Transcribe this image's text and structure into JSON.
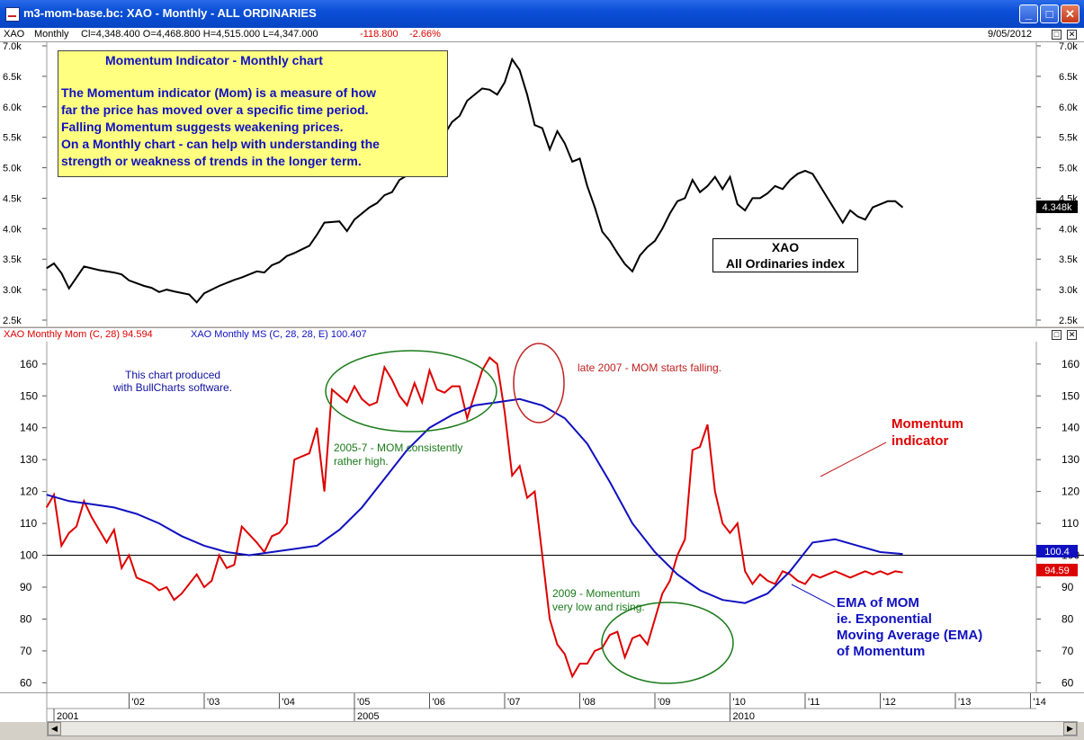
{
  "window": {
    "title": "m3-mom-base.bc: XAO - Monthly - ALL ORDINARIES",
    "minimize_icon": "minimize-icon",
    "maximize_icon": "maximize-icon",
    "close_icon": "close-icon"
  },
  "price_pane": {
    "header": {
      "symbol": "XAO",
      "period": "Monthly",
      "ohlc": "Cl=4,348.400  O=4,468.800  H=4,515.000  L=4,347.000",
      "change": "-118.800",
      "change_pct": "-2.66%",
      "date": "9/05/2012"
    },
    "y_ticks": [
      "7.0k",
      "6.5k",
      "6.0k",
      "5.5k",
      "5.0k",
      "4.5k",
      "4.0k",
      "3.5k",
      "3.0k",
      "2.5k"
    ],
    "last_value_label": "4.348k",
    "note": {
      "title": "Momentum Indicator - Monthly chart",
      "lines": [
        "The Momentum indicator (Mom) is a measure of how",
        "far the price has moved over a specific time period.",
        "Falling Momentum suggests weakening prices.",
        "On a Monthly chart - can help with understanding the",
        "strength or weakness of trends in the longer term."
      ]
    },
    "label_box": {
      "line1": "XAO",
      "line2": "All Ordinaries index"
    }
  },
  "indicator_pane": {
    "header": {
      "mom_label": "XAO  Monthly  Mom (C, 28)  94.594",
      "ma_label": "XAO  Monthly  MS (C, 28, 28, E)  100.407"
    },
    "y_ticks": [
      "160",
      "150",
      "140",
      "130",
      "120",
      "110",
      "100",
      "90",
      "80",
      "70",
      "60"
    ],
    "ma_last_label": "100.4",
    "mom_last_label": "94.59",
    "annotations": {
      "software": [
        "This chart produced",
        "with BullCharts software."
      ],
      "high": [
        "2005-7 - MOM consistently",
        "rather high."
      ],
      "falling": "late 2007 - MOM starts falling.",
      "low": [
        "2009 - Momentum",
        "very low and rising."
      ],
      "mom_label": [
        "Momentum",
        "indicator"
      ],
      "ema_label": [
        "EMA of MOM",
        "ie. Exponential",
        "Moving Average (EMA)",
        "of Momentum"
      ]
    }
  },
  "x_axis": {
    "year_ticks": [
      "'02",
      "'03",
      "'04",
      "'05",
      "'06",
      "'07",
      "'08",
      "'09",
      "'10",
      "'11",
      "'12",
      "'13",
      "'14"
    ],
    "lower_labels": [
      "2001",
      "2005",
      "2010"
    ]
  },
  "scrollbar": {
    "left_icon": "arrow-left-icon",
    "right_icon": "arrow-right-icon"
  },
  "colors": {
    "price": "#000000",
    "momentum": "#dd0000",
    "ema": "#1010c0",
    "note_bg": "#ffff80",
    "note_text": "#1010c0",
    "annotation_green": "#1a7a1a",
    "annotation_red": "#c02020"
  },
  "chart_data": [
    {
      "type": "line",
      "title": "",
      "series": [
        {
          "name": "XAO",
          "x": [
            2000.9,
            2001.0,
            2001.1,
            2001.2,
            2001.4,
            2001.5,
            2001.6,
            2001.8,
            2001.9,
            2002.0,
            2002.2,
            2002.3,
            2002.4,
            2002.5,
            2002.6,
            2002.8,
            2002.9,
            2003.0,
            2003.1,
            2003.2,
            2003.4,
            2003.5,
            2003.7,
            2003.8,
            2003.9,
            2004.0,
            2004.1,
            2004.2,
            2004.4,
            2004.5,
            2004.6,
            2004.8,
            2004.9,
            2005.0,
            2005.2,
            2005.3,
            2005.4,
            2005.5,
            2005.6,
            2005.8,
            2005.9,
            2006.0,
            2006.2,
            2006.3,
            2006.4,
            2006.5,
            2006.7,
            2006.8,
            2006.9,
            2007.0,
            2007.1,
            2007.2,
            2007.3,
            2007.4,
            2007.5,
            2007.6,
            2007.7,
            2007.8,
            2007.9,
            2008.0,
            2008.1,
            2008.2,
            2008.3,
            2008.4,
            2008.5,
            2008.6,
            2008.7,
            2008.8,
            2008.9,
            2009.0,
            2009.1,
            2009.2,
            2009.3,
            2009.4,
            2009.5,
            2009.6,
            2009.7,
            2009.8,
            2009.9,
            2010.0,
            2010.1,
            2010.2,
            2010.3,
            2010.4,
            2010.5,
            2010.6,
            2010.7,
            2010.8,
            2010.9,
            2011.0,
            2011.1,
            2011.2,
            2011.3,
            2011.4,
            2011.5,
            2011.6,
            2011.7,
            2011.8,
            2011.9,
            2012.0,
            2012.1,
            2012.2,
            2012.3
          ],
          "values": [
            3350,
            3430,
            3270,
            3020,
            3380,
            3350,
            3320,
            3280,
            3250,
            3150,
            3060,
            3030,
            2960,
            3000,
            2970,
            2920,
            2790,
            2940,
            3000,
            3060,
            3160,
            3200,
            3300,
            3280,
            3400,
            3450,
            3550,
            3600,
            3720,
            3900,
            4100,
            4120,
            3960,
            4150,
            4350,
            4420,
            4550,
            4600,
            4800,
            4950,
            5050,
            5300,
            5550,
            5750,
            5850,
            6100,
            6300,
            6280,
            6200,
            6400,
            6780,
            6600,
            6200,
            5700,
            5650,
            5300,
            5600,
            5400,
            5100,
            5150,
            4700,
            4350,
            3950,
            3800,
            3600,
            3420,
            3300,
            3560,
            3700,
            3800,
            4000,
            4250,
            4450,
            4500,
            4800,
            4600,
            4700,
            4850,
            4650,
            4850,
            4400,
            4300,
            4500,
            4500,
            4580,
            4700,
            4650,
            4800,
            4900,
            4950,
            4900,
            4700,
            4500,
            4300,
            4100,
            4300,
            4200,
            4150,
            4350,
            4400,
            4450,
            4450,
            4348
          ]
        }
      ],
      "xlabel": "",
      "ylabel": "",
      "ylim": [
        2500,
        7000
      ],
      "y_ticks": [
        2500,
        3000,
        3500,
        4000,
        4500,
        5000,
        5500,
        6000,
        6500,
        7000
      ],
      "grid": false,
      "legend": "top-left"
    },
    {
      "type": "line",
      "title": "",
      "series": [
        {
          "name": "Mom (C, 28)",
          "x": [
            2000.9,
            2001.0,
            2001.1,
            2001.2,
            2001.3,
            2001.4,
            2001.5,
            2001.7,
            2001.8,
            2001.9,
            2002.0,
            2002.1,
            2002.3,
            2002.4,
            2002.5,
            2002.6,
            2002.7,
            2002.9,
            2003.0,
            2003.1,
            2003.2,
            2003.3,
            2003.4,
            2003.5,
            2003.7,
            2003.8,
            2003.9,
            2004.0,
            2004.1,
            2004.2,
            2004.4,
            2004.5,
            2004.6,
            2004.7,
            2004.9,
            2005.0,
            2005.1,
            2005.2,
            2005.3,
            2005.4,
            2005.5,
            2005.6,
            2005.7,
            2005.8,
            2005.9,
            2006.0,
            2006.1,
            2006.2,
            2006.3,
            2006.4,
            2006.5,
            2006.7,
            2006.8,
            2006.9,
            2007.0,
            2007.1,
            2007.2,
            2007.3,
            2007.4,
            2007.5,
            2007.6,
            2007.7,
            2007.8,
            2007.9,
            2008.0,
            2008.1,
            2008.2,
            2008.3,
            2008.4,
            2008.5,
            2008.6,
            2008.7,
            2008.8,
            2008.9,
            2009.0,
            2009.1,
            2009.2,
            2009.3,
            2009.4,
            2009.5,
            2009.6,
            2009.7,
            2009.8,
            2009.9,
            2010.0,
            2010.1,
            2010.2,
            2010.3,
            2010.4,
            2010.5,
            2010.6,
            2010.7,
            2010.8,
            2010.9,
            2011.0,
            2011.1,
            2011.2,
            2011.3,
            2011.4,
            2011.5,
            2011.6,
            2011.7,
            2011.8,
            2011.9,
            2012.0,
            2012.1,
            2012.2,
            2012.3
          ],
          "values": [
            115,
            119,
            103,
            107,
            109,
            117,
            112,
            104,
            108,
            96,
            100,
            93,
            91,
            89,
            90,
            86,
            88,
            94,
            90,
            92,
            100,
            96,
            97,
            109,
            104,
            101,
            106,
            107,
            110,
            130,
            132,
            140,
            120,
            152,
            148,
            153,
            149,
            147,
            148,
            159,
            155,
            150,
            147,
            154,
            148,
            158,
            152,
            151,
            153,
            153,
            143,
            158,
            162,
            160,
            145,
            125,
            128,
            118,
            120,
            100,
            80,
            72,
            69,
            62,
            66,
            66,
            70,
            71,
            75,
            76,
            68,
            74,
            75,
            72,
            80,
            88,
            92,
            100,
            105,
            133,
            134,
            141,
            120,
            110,
            107,
            110,
            95,
            91,
            94,
            92,
            91,
            95,
            94,
            92,
            91,
            94,
            93,
            94,
            95,
            94,
            93,
            94,
            95,
            94,
            95,
            94,
            95,
            94.59
          ],
          "color": "#dd0000"
        },
        {
          "name": "MS (C, 28, 28, E)",
          "x": [
            2000.9,
            2001.2,
            2001.5,
            2001.8,
            2002.1,
            2002.4,
            2002.7,
            2003.0,
            2003.3,
            2003.6,
            2003.9,
            2004.2,
            2004.5,
            2004.8,
            2005.1,
            2005.4,
            2005.7,
            2006.0,
            2006.3,
            2006.6,
            2006.9,
            2007.2,
            2007.5,
            2007.8,
            2008.1,
            2008.4,
            2008.7,
            2009.0,
            2009.3,
            2009.6,
            2009.9,
            2010.2,
            2010.5,
            2010.8,
            2011.1,
            2011.4,
            2011.7,
            2012.0,
            2012.3
          ],
          "values": [
            119,
            117,
            116,
            115,
            113,
            110,
            106,
            103,
            101,
            100,
            101,
            102,
            103,
            108,
            115,
            124,
            133,
            140,
            144,
            147,
            148,
            149,
            147,
            143,
            135,
            123,
            110,
            101,
            94,
            89,
            86,
            85,
            88,
            95,
            104,
            105,
            103,
            101,
            100.4
          ],
          "color": "#1010c0"
        }
      ],
      "xlabel": "",
      "ylabel": "",
      "ylim": [
        57,
        167
      ],
      "y_ticks": [
        60,
        70,
        80,
        90,
        100,
        110,
        120,
        130,
        140,
        150,
        160
      ],
      "reference_line": 100,
      "grid": false,
      "legend": "top-left"
    }
  ]
}
